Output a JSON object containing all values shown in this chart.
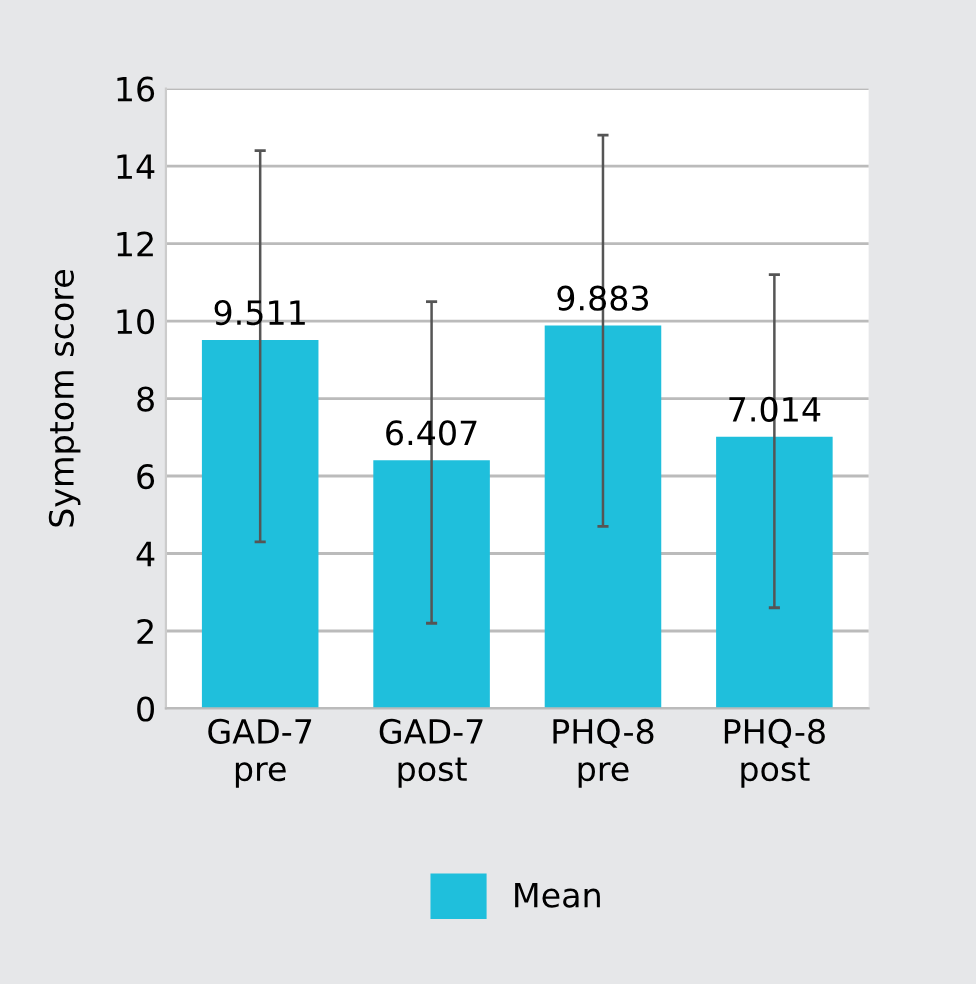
{
  "chart_data": {
    "type": "bar",
    "ylabel": "Symptom score",
    "categories": [
      "GAD-7\npre",
      "GAD-7\npost",
      "PHQ-8\npre",
      "PHQ-8\npost"
    ],
    "series": [
      {
        "name": "Mean",
        "color": "#1fbfdc",
        "values": [
          9.511,
          6.407,
          9.883,
          7.014
        ],
        "errors": [
          [
            4.3,
            14.4
          ],
          [
            2.2,
            10.5
          ],
          [
            4.7,
            14.8
          ],
          [
            2.6,
            11.2
          ]
        ]
      }
    ],
    "data_labels": true,
    "ylim": [
      0,
      16
    ],
    "yticks": [
      0,
      2,
      4,
      6,
      8,
      10,
      12,
      14,
      16
    ],
    "grid": "y",
    "legend": "bottom"
  }
}
